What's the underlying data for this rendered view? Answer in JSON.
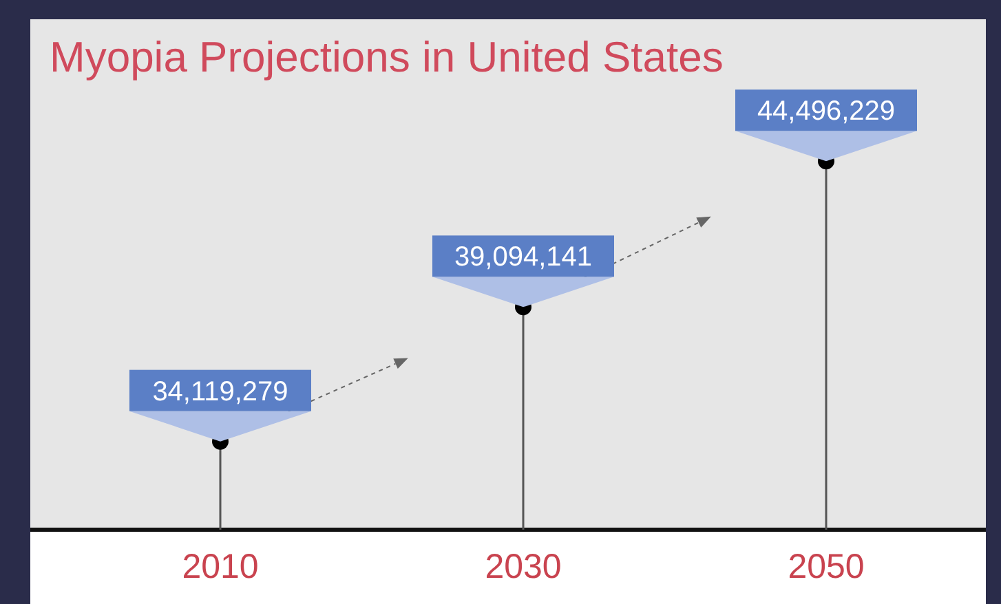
{
  "chart_data": {
    "type": "lollipop",
    "title": "Myopia Projections in United States",
    "categories": [
      "2010",
      "2030",
      "2050"
    ],
    "values": [
      34119279,
      39094141,
      44496229
    ],
    "ylim": [
      30850000,
      49750000
    ],
    "data_labels": true,
    "value_labels": [
      "34,119,279",
      "39,094,141",
      "44,496,229"
    ],
    "color": "#000000"
  }
}
